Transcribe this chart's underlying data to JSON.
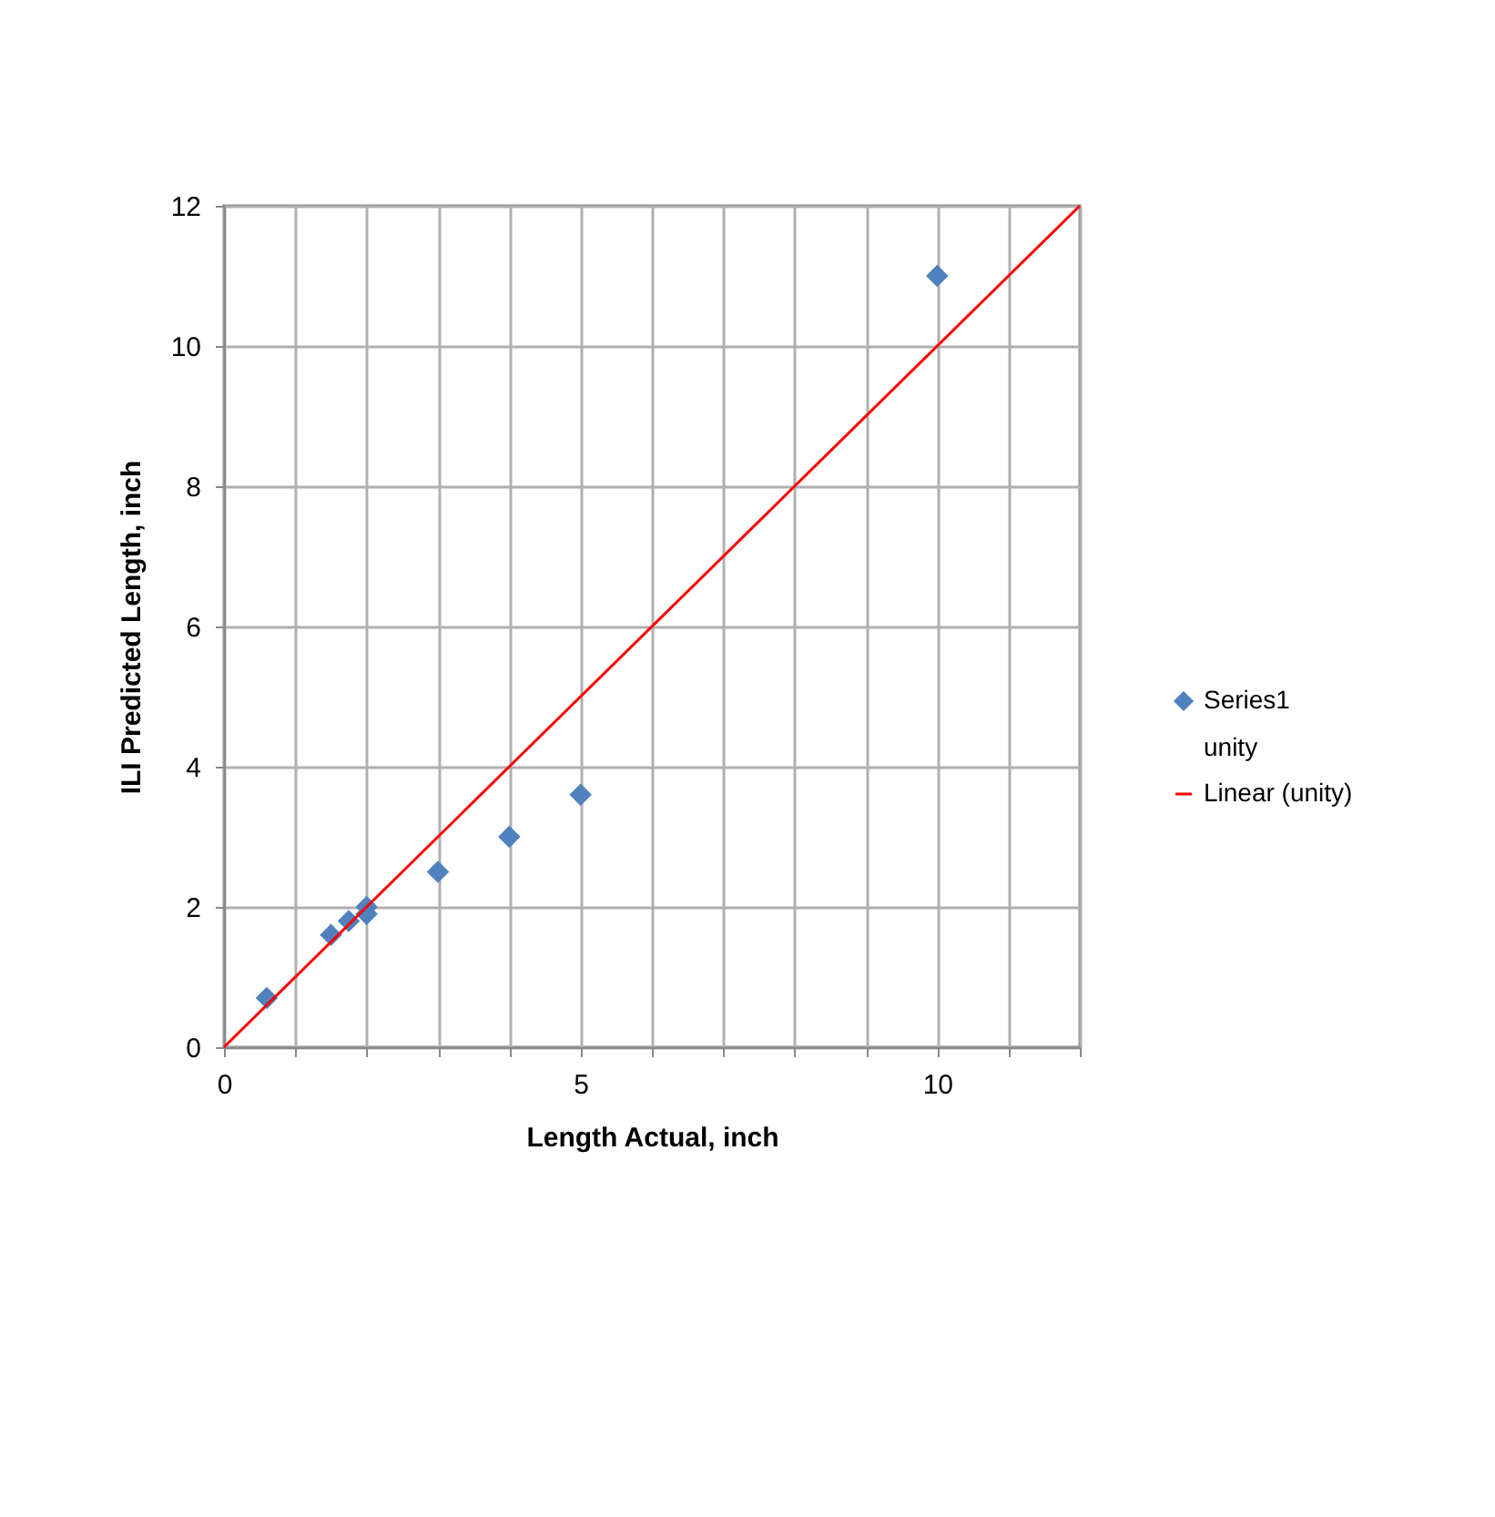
{
  "chart_data": {
    "type": "scatter",
    "xlabel": "Length Actual, inch",
    "ylabel": "ILI Predicted Length, inch",
    "xlim": [
      0,
      12
    ],
    "ylim": [
      0,
      12
    ],
    "xticks": [
      0,
      {
        "value": 1,
        "label": null
      },
      {
        "value": 2,
        "label": null
      },
      {
        "value": 3,
        "label": null
      },
      {
        "value": 4,
        "label": null
      },
      5,
      {
        "value": 6,
        "label": null
      },
      {
        "value": 7,
        "label": null
      },
      {
        "value": 8,
        "label": null
      },
      {
        "value": 9,
        "label": null
      },
      10,
      {
        "value": 11,
        "label": null
      },
      {
        "value": 12,
        "label": null
      }
    ],
    "yticks": [
      0,
      2,
      4,
      6,
      8,
      10,
      12
    ],
    "grid": true,
    "legend": "right",
    "series": [
      {
        "name": "Series1",
        "marker": "diamond",
        "color": "#4f81bd",
        "x": [
          0.6,
          1.5,
          1.75,
          2,
          2,
          3,
          4,
          5,
          10
        ],
        "values": [
          0.7,
          1.6,
          1.8,
          2.0,
          1.9,
          2.5,
          3.0,
          3.6,
          11.0
        ]
      },
      {
        "name": "unity",
        "type": "scatter",
        "marker": "none"
      },
      {
        "name": "Linear (unity)",
        "type": "line",
        "color": "#ff0000",
        "x": [
          0,
          12
        ],
        "values": [
          0,
          12
        ]
      }
    ]
  }
}
